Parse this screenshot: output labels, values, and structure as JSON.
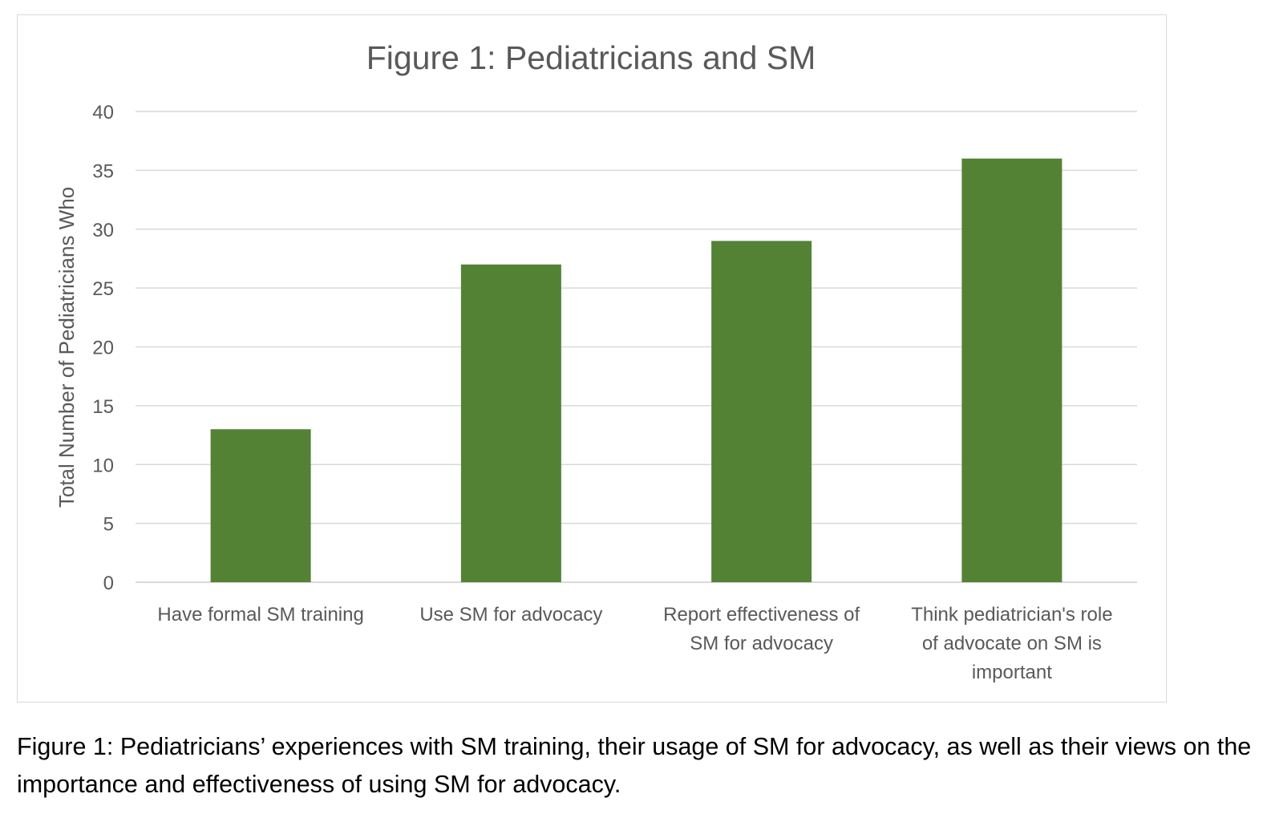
{
  "chart_data": {
    "type": "bar",
    "title": "Figure 1: Pediatricians and SM",
    "ylabel": "Total Number of Pediatricians Who",
    "xlabel": "",
    "categories": [
      [
        "Have formal SM training"
      ],
      [
        "Use SM for advocacy"
      ],
      [
        "Report effectiveness of",
        "SM for advocacy"
      ],
      [
        "Think pediatrician's role",
        "of advocate on SM is",
        "important"
      ]
    ],
    "values": [
      13,
      27,
      29,
      36
    ],
    "ylim": [
      0,
      40
    ],
    "yticks": [
      0,
      5,
      10,
      15,
      20,
      25,
      30,
      35,
      40
    ],
    "grid": true,
    "legend": "none",
    "bar_color": "#548235",
    "grid_color": "#d9d9d9"
  },
  "caption": "Figure 1: Pediatricians’ experiences with SM training, their usage of SM for advocacy, as well as their views on the importance and effectiveness of using SM for advocacy."
}
